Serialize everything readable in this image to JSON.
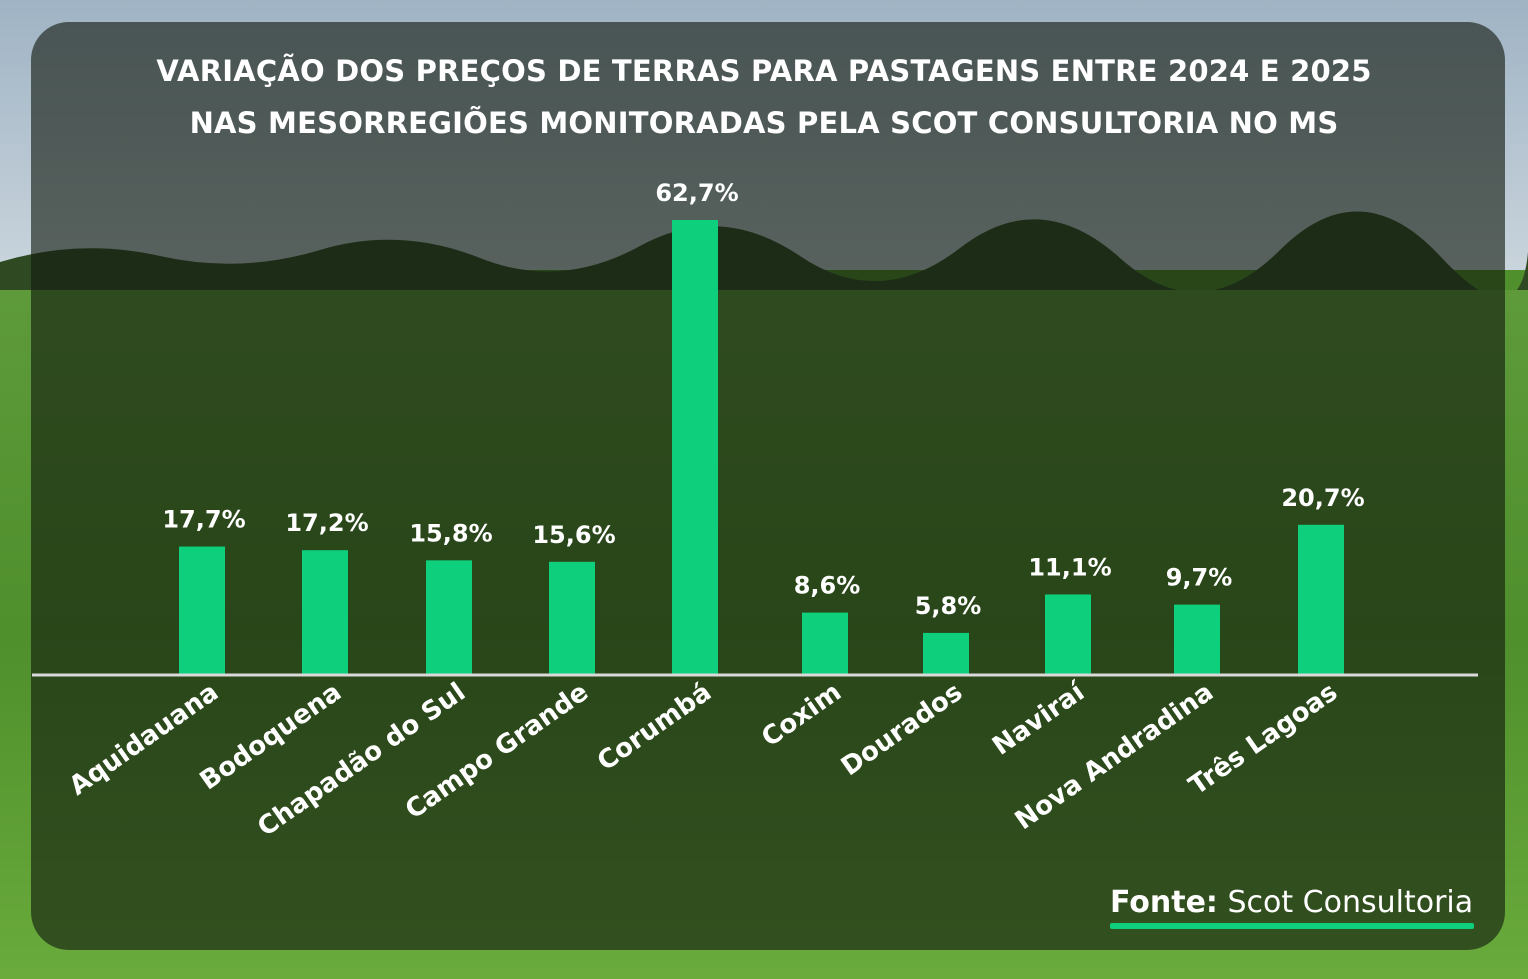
{
  "title_line_1": "VARIAÇÃO DOS PREÇOS DE TERRAS PARA PASTAGENS ENTRE 2024 E 2025",
  "title_line_2": "NAS MESORREGIÕES MONITORADAS PELA SCOT CONSULTORIA NO MS",
  "source_label": "Fonte:",
  "source_name": "Scot Consultoria",
  "colors": {
    "bar": "#0dcf7c",
    "baseline": "#d9d9d9",
    "text": "#ffffff",
    "panel": "#121a0e"
  },
  "chart_data": {
    "type": "bar",
    "title": "VARIAÇÃO DOS PREÇOS DE TERRAS PARA PASTAGENS ENTRE 2024 E 2025 NAS MESORREGIÕES MONITORADAS PELA SCOT CONSULTORIA NO MS",
    "categories": [
      "Aquidauana",
      "Bodoquena",
      "Chapadão do Sul",
      "Campo Grande",
      "Corumbá",
      "Coxim",
      "Dourados",
      "Naviraí",
      "Nova Andradina",
      "Três Lagoas"
    ],
    "values": [
      17.7,
      17.2,
      15.8,
      15.6,
      62.7,
      8.6,
      5.8,
      11.1,
      9.7,
      20.7
    ],
    "data_labels": [
      "17,7%",
      "17,2%",
      "15,8%",
      "15,6%",
      "62,7%",
      "8,6%",
      "5,8%",
      "11,1%",
      "9,7%",
      "20,7%"
    ],
    "unit": "%",
    "ylim": [
      0,
      62.7
    ],
    "grid": false,
    "legend": "none"
  }
}
